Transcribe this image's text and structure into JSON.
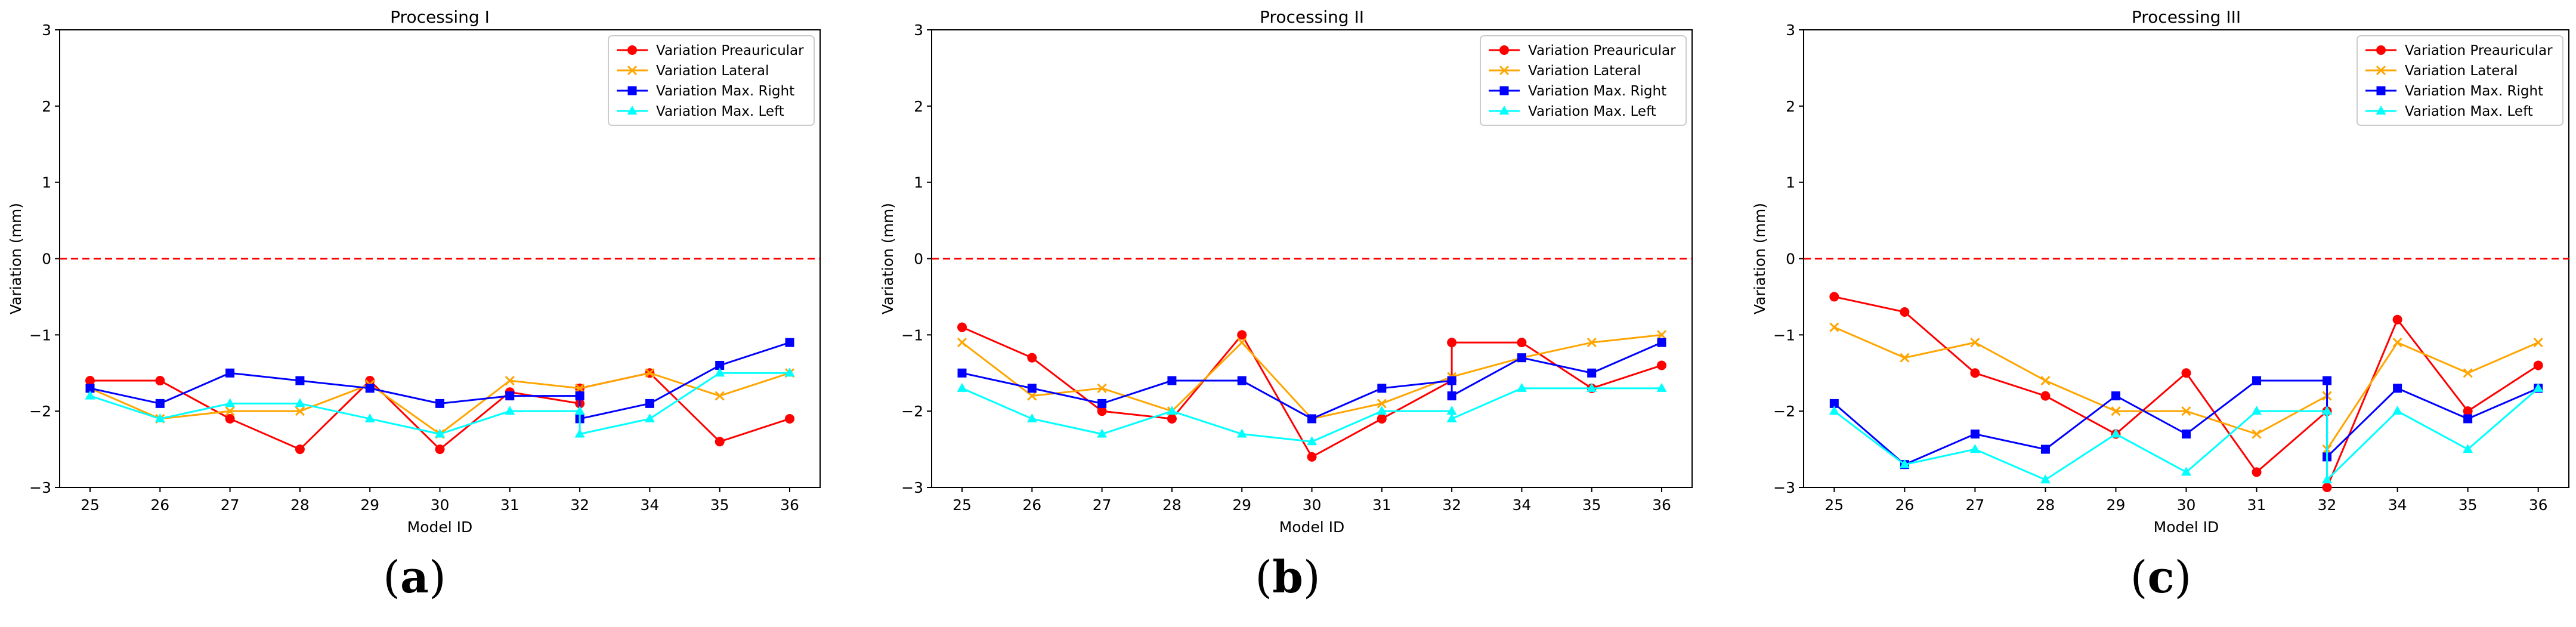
{
  "figure": {
    "panel_labels": [
      {
        "open": "(",
        "letter": "a",
        "close": ")"
      },
      {
        "open": "(",
        "letter": "b",
        "close": ")"
      },
      {
        "open": "(",
        "letter": "c",
        "close": ")"
      }
    ]
  },
  "chart_data": [
    {
      "type": "line",
      "title": "Processing I",
      "xlabel": "Model ID",
      "ylabel": "Variation (mm)",
      "categories": [
        "25",
        "26",
        "27",
        "28",
        "29",
        "30",
        "31",
        "32",
        "34",
        "35",
        "36"
      ],
      "ylim": [
        -3,
        3
      ],
      "yticks": [
        "−3",
        "−2",
        "−1",
        "0",
        "1",
        "2",
        "3"
      ],
      "reference_line": 0,
      "legend_position": "top-right",
      "series": [
        {
          "name": "Variation Preauricular",
          "color": "#ff0000",
          "marker": "circle",
          "points": [
            [
              0,
              -1.6
            ],
            [
              1,
              -1.6
            ],
            [
              2,
              -2.1
            ],
            [
              3,
              -2.5
            ],
            [
              4,
              -1.6
            ],
            [
              5,
              -2.5
            ],
            [
              6,
              -1.75
            ],
            [
              7,
              -1.9
            ],
            [
              7,
              -1.7
            ],
            [
              8,
              -1.5
            ],
            [
              9,
              -2.4
            ],
            [
              10,
              -2.1
            ]
          ]
        },
        {
          "name": "Variation Lateral",
          "color": "#ffa500",
          "marker": "x",
          "points": [
            [
              0,
              -1.7
            ],
            [
              1,
              -2.1
            ],
            [
              2,
              -2.0
            ],
            [
              3,
              -2.0
            ],
            [
              4,
              -1.65
            ],
            [
              5,
              -2.3
            ],
            [
              6,
              -1.6
            ],
            [
              7,
              -1.7
            ],
            [
              8,
              -1.5
            ],
            [
              9,
              -1.8
            ],
            [
              10,
              -1.5
            ]
          ]
        },
        {
          "name": "Variation Max. Right",
          "color": "#0000ff",
          "marker": "square",
          "points": [
            [
              0,
              -1.7
            ],
            [
              1,
              -1.9
            ],
            [
              2,
              -1.5
            ],
            [
              3,
              -1.6
            ],
            [
              4,
              -1.7
            ],
            [
              5,
              -1.9
            ],
            [
              6,
              -1.8
            ],
            [
              7,
              -1.8
            ],
            [
              7,
              -2.1
            ],
            [
              8,
              -1.9
            ],
            [
              9,
              -1.4
            ],
            [
              10,
              -1.1
            ]
          ]
        },
        {
          "name": "Variation Max. Left",
          "color": "#00ffff",
          "marker": "triangle",
          "points": [
            [
              0,
              -1.8
            ],
            [
              1,
              -2.1
            ],
            [
              2,
              -1.9
            ],
            [
              3,
              -1.9
            ],
            [
              4,
              -2.1
            ],
            [
              5,
              -2.3
            ],
            [
              6,
              -2.0
            ],
            [
              7,
              -2.0
            ],
            [
              7,
              -2.3
            ],
            [
              8,
              -2.1
            ],
            [
              9,
              -1.5
            ],
            [
              10,
              -1.5
            ]
          ]
        }
      ]
    },
    {
      "type": "line",
      "title": "Processing II",
      "xlabel": "Model ID",
      "ylabel": "Variation (mm)",
      "categories": [
        "25",
        "26",
        "27",
        "28",
        "29",
        "30",
        "31",
        "32",
        "34",
        "35",
        "36"
      ],
      "ylim": [
        -3,
        3
      ],
      "yticks": [
        "−3",
        "−2",
        "−1",
        "0",
        "1",
        "2",
        "3"
      ],
      "reference_line": 0,
      "legend_position": "top-right",
      "series": [
        {
          "name": "Variation Preauricular",
          "color": "#ff0000",
          "marker": "circle",
          "points": [
            [
              0,
              -0.9
            ],
            [
              1,
              -1.3
            ],
            [
              2,
              -2.0
            ],
            [
              3,
              -2.1
            ],
            [
              4,
              -1.0
            ],
            [
              5,
              -2.6
            ],
            [
              6,
              -2.1
            ],
            [
              7,
              -1.6
            ],
            [
              7,
              -1.1
            ],
            [
              8,
              -1.1
            ],
            [
              9,
              -1.7
            ],
            [
              10,
              -1.4
            ]
          ]
        },
        {
          "name": "Variation Lateral",
          "color": "#ffa500",
          "marker": "x",
          "points": [
            [
              0,
              -1.1
            ],
            [
              1,
              -1.8
            ],
            [
              2,
              -1.7
            ],
            [
              3,
              -2.0
            ],
            [
              4,
              -1.1
            ],
            [
              5,
              -2.1
            ],
            [
              6,
              -1.9
            ],
            [
              7,
              -1.55
            ],
            [
              8,
              -1.3
            ],
            [
              9,
              -1.1
            ],
            [
              10,
              -1.0
            ]
          ]
        },
        {
          "name": "Variation Max. Right",
          "color": "#0000ff",
          "marker": "square",
          "points": [
            [
              0,
              -1.5
            ],
            [
              1,
              -1.7
            ],
            [
              2,
              -1.9
            ],
            [
              3,
              -1.6
            ],
            [
              4,
              -1.6
            ],
            [
              5,
              -2.1
            ],
            [
              6,
              -1.7
            ],
            [
              7,
              -1.6
            ],
            [
              7,
              -1.8
            ],
            [
              8,
              -1.3
            ],
            [
              9,
              -1.5
            ],
            [
              10,
              -1.1
            ]
          ]
        },
        {
          "name": "Variation Max. Left",
          "color": "#00ffff",
          "marker": "triangle",
          "points": [
            [
              0,
              -1.7
            ],
            [
              1,
              -2.1
            ],
            [
              2,
              -2.3
            ],
            [
              3,
              -2.0
            ],
            [
              4,
              -2.3
            ],
            [
              5,
              -2.4
            ],
            [
              6,
              -2.0
            ],
            [
              7,
              -2.0
            ],
            [
              7,
              -2.1
            ],
            [
              8,
              -1.7
            ],
            [
              9,
              -1.7
            ],
            [
              10,
              -1.7
            ]
          ]
        }
      ]
    },
    {
      "type": "line",
      "title": "Processing III",
      "xlabel": "Model ID",
      "ylabel": "Variation (mm)",
      "categories": [
        "25",
        "26",
        "27",
        "28",
        "29",
        "30",
        "31",
        "32",
        "34",
        "35",
        "36"
      ],
      "ylim": [
        -3,
        3
      ],
      "yticks": [
        "−3",
        "−2",
        "−1",
        "0",
        "1",
        "2",
        "3"
      ],
      "reference_line": 0,
      "legend_position": "top-right",
      "series": [
        {
          "name": "Variation Preauricular",
          "color": "#ff0000",
          "marker": "circle",
          "points": [
            [
              0,
              -0.5
            ],
            [
              1,
              -0.7
            ],
            [
              2,
              -1.5
            ],
            [
              3,
              -1.8
            ],
            [
              4,
              -2.3
            ],
            [
              5,
              -1.5
            ],
            [
              6,
              -2.8
            ],
            [
              7,
              -2.0
            ],
            [
              7,
              -3.0
            ],
            [
              8,
              -0.8
            ],
            [
              9,
              -2.0
            ],
            [
              10,
              -1.4
            ]
          ]
        },
        {
          "name": "Variation Lateral",
          "color": "#ffa500",
          "marker": "x",
          "points": [
            [
              0,
              -0.9
            ],
            [
              1,
              -1.3
            ],
            [
              2,
              -1.1
            ],
            [
              3,
              -1.6
            ],
            [
              4,
              -2.0
            ],
            [
              5,
              -2.0
            ],
            [
              6,
              -2.3
            ],
            [
              7,
              -1.8
            ],
            [
              7,
              -2.5
            ],
            [
              8,
              -1.1
            ],
            [
              9,
              -1.5
            ],
            [
              10,
              -1.1
            ]
          ]
        },
        {
          "name": "Variation Max. Right",
          "color": "#0000ff",
          "marker": "square",
          "points": [
            [
              0,
              -1.9
            ],
            [
              1,
              -2.7
            ],
            [
              2,
              -2.3
            ],
            [
              3,
              -2.5
            ],
            [
              4,
              -1.8
            ],
            [
              5,
              -2.3
            ],
            [
              6,
              -1.6
            ],
            [
              7,
              -1.6
            ],
            [
              7,
              -2.6
            ],
            [
              8,
              -1.7
            ],
            [
              9,
              -2.1
            ],
            [
              10,
              -1.7
            ]
          ]
        },
        {
          "name": "Variation Max. Left",
          "color": "#00ffff",
          "marker": "triangle",
          "points": [
            [
              0,
              -2.0
            ],
            [
              1,
              -2.7
            ],
            [
              2,
              -2.5
            ],
            [
              3,
              -2.9
            ],
            [
              4,
              -2.3
            ],
            [
              5,
              -2.8
            ],
            [
              6,
              -2.0
            ],
            [
              7,
              -2.0
            ],
            [
              7,
              -2.9
            ],
            [
              8,
              -2.0
            ],
            [
              9,
              -2.5
            ],
            [
              10,
              -1.7
            ]
          ]
        }
      ]
    }
  ]
}
